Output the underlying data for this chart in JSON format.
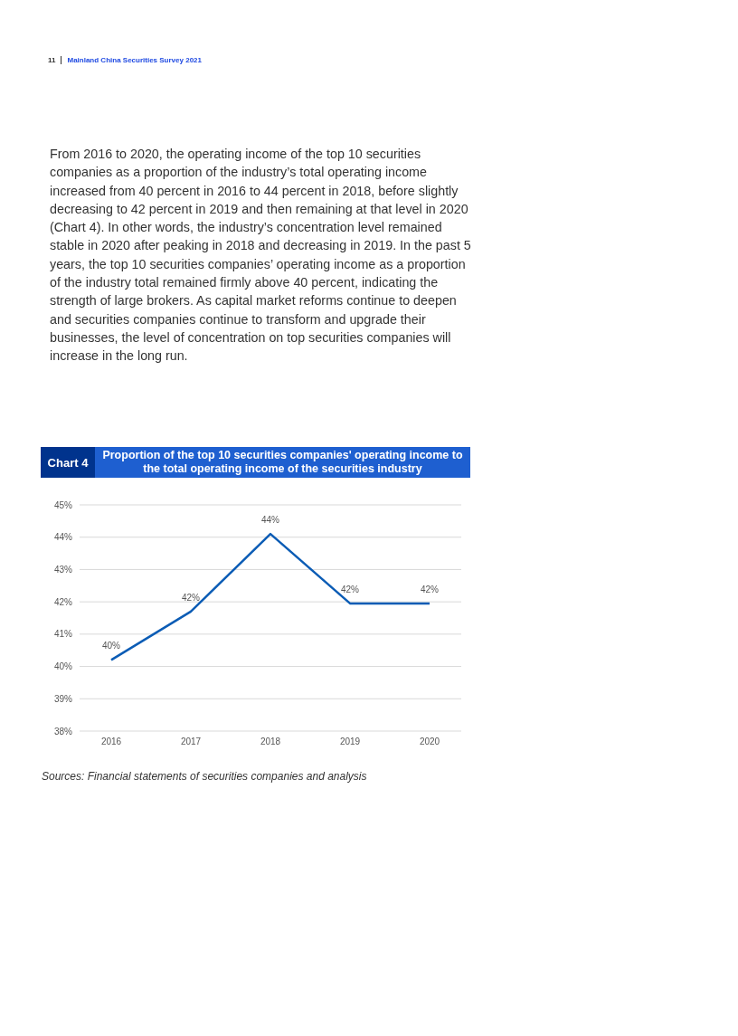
{
  "chart_data": {
    "type": "line",
    "title": "Proportion of the top 10 securities companies' operating income to the total operating income of the securities industry",
    "categories": [
      "2016",
      "2017",
      "2018",
      "2019",
      "2020"
    ],
    "series": [
      {
        "color": "#0b5cb5",
        "values": [
          40.2,
          41.7,
          44.1,
          41.95,
          41.95
        ],
        "value_labels": [
          "40%",
          "42%",
          "44%",
          "42%",
          "42%"
        ]
      }
    ],
    "ylim": [
      38,
      45
    ],
    "yticks": [
      {
        "value": 38,
        "label": "38%"
      },
      {
        "value": 39,
        "label": "39%"
      },
      {
        "value": 40,
        "label": "40%"
      },
      {
        "value": 41,
        "label": "41%"
      },
      {
        "value": 42,
        "label": "42%"
      },
      {
        "value": 43,
        "label": "43%"
      },
      {
        "value": 44,
        "label": "44%"
      },
      {
        "value": 45,
        "label": "45%"
      }
    ],
    "grid": "y",
    "marker": "none",
    "line_style": "solid",
    "annotations": [
      "11",
      "Mainland China Securities Survey 2021",
      "From 2016 to 2020, the operating income of the top 10 securities companies as a proportion of the industry’s total operating income increased from 40 percent in 2016 to 44 percent in 2018, before slightly decreasing to 42 percent in 2019 and then remaining at that level in 2020 (Chart 4). In other words, the industry’s concentration level remained stable in 2020 after peaking in 2018 and decreasing in 2019. In the past 5 years, the top 10 securities companies’ operating income as a proportion of the industry total remained firmly above 40 percent, indicating the strength of large brokers. As capital market reforms continue to deepen and securities companies continue to transform and upgrade their businesses, the level of concentration on top securities companies will increase in the long run.",
      "Chart 4",
      "Sources: Financial statements of securities companies and analysis"
    ]
  }
}
